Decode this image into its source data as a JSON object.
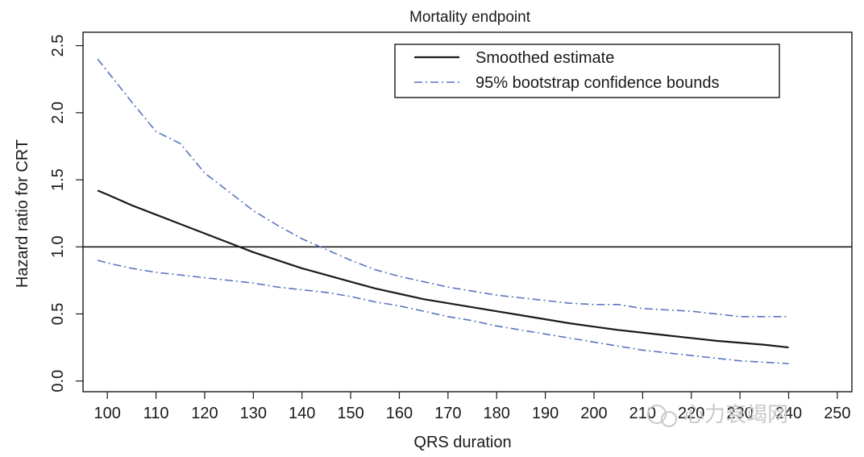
{
  "chart_data": {
    "type": "line",
    "title": "Mortality endpoint",
    "xlabel": "QRS duration",
    "ylabel": "Hazard ratio for CRT",
    "xlim": [
      95,
      253
    ],
    "ylim": [
      -0.08,
      2.6
    ],
    "xticks": [
      100,
      110,
      120,
      130,
      140,
      150,
      160,
      170,
      180,
      190,
      200,
      210,
      220,
      230,
      240,
      250
    ],
    "xtick_labels": [
      "100",
      "110",
      "120",
      "130",
      "140",
      "150",
      "160",
      "170",
      "180",
      "190",
      "200",
      "210",
      "220",
      "230",
      "240",
      "250"
    ],
    "yticks": [
      0.0,
      0.5,
      1.0,
      1.5,
      2.0,
      2.5
    ],
    "ytick_labels": [
      "0.0",
      "0.5",
      "1.0",
      "1.5",
      "2.0",
      "2.5"
    ],
    "reference_line": {
      "y": 1.0
    },
    "legend_position": "top-right",
    "series": [
      {
        "name": "Smoothed estimate",
        "style": "solid",
        "color": "#1a1a1a",
        "x": [
          98,
          100,
          105,
          110,
          115,
          120,
          125,
          130,
          135,
          140,
          145,
          150,
          155,
          160,
          165,
          170,
          175,
          180,
          185,
          190,
          195,
          200,
          205,
          210,
          215,
          220,
          225,
          230,
          235,
          240
        ],
        "y": [
          1.42,
          1.39,
          1.31,
          1.24,
          1.17,
          1.1,
          1.03,
          0.96,
          0.9,
          0.84,
          0.79,
          0.74,
          0.69,
          0.65,
          0.61,
          0.58,
          0.55,
          0.52,
          0.49,
          0.46,
          0.43,
          0.405,
          0.38,
          0.36,
          0.34,
          0.32,
          0.3,
          0.285,
          0.27,
          0.25
        ]
      },
      {
        "name": "95% bootstrap confidence bounds",
        "style": "dash-dot",
        "color": "#5a74c0",
        "x": [
          98,
          100,
          105,
          110,
          115,
          120,
          125,
          130,
          135,
          140,
          145,
          150,
          155,
          160,
          165,
          170,
          175,
          180,
          185,
          190,
          195,
          200,
          205,
          210,
          215,
          220,
          225,
          230,
          235,
          240
        ],
        "y": [
          2.4,
          2.31,
          2.08,
          1.86,
          1.77,
          1.55,
          1.41,
          1.27,
          1.16,
          1.06,
          0.98,
          0.9,
          0.83,
          0.78,
          0.74,
          0.7,
          0.67,
          0.64,
          0.62,
          0.6,
          0.58,
          0.57,
          0.57,
          0.54,
          0.53,
          0.52,
          0.5,
          0.48,
          0.48,
          0.48
        ]
      },
      {
        "name": "95% bootstrap confidence bounds (lower)",
        "style": "dash-dot",
        "color": "#5a74c0",
        "x": [
          98,
          100,
          105,
          110,
          115,
          120,
          125,
          130,
          135,
          140,
          145,
          150,
          155,
          160,
          165,
          170,
          175,
          180,
          185,
          190,
          195,
          200,
          205,
          210,
          215,
          220,
          225,
          230,
          235,
          240
        ],
        "y": [
          0.9,
          0.88,
          0.84,
          0.81,
          0.79,
          0.77,
          0.75,
          0.73,
          0.7,
          0.68,
          0.66,
          0.63,
          0.59,
          0.56,
          0.52,
          0.48,
          0.45,
          0.41,
          0.38,
          0.35,
          0.32,
          0.29,
          0.26,
          0.23,
          0.21,
          0.19,
          0.17,
          0.15,
          0.14,
          0.13
        ]
      }
    ]
  },
  "legend": {
    "items": [
      "Smoothed estimate",
      "95% bootstrap confidence bounds"
    ]
  },
  "watermark": {
    "text": "心力衰竭网"
  }
}
